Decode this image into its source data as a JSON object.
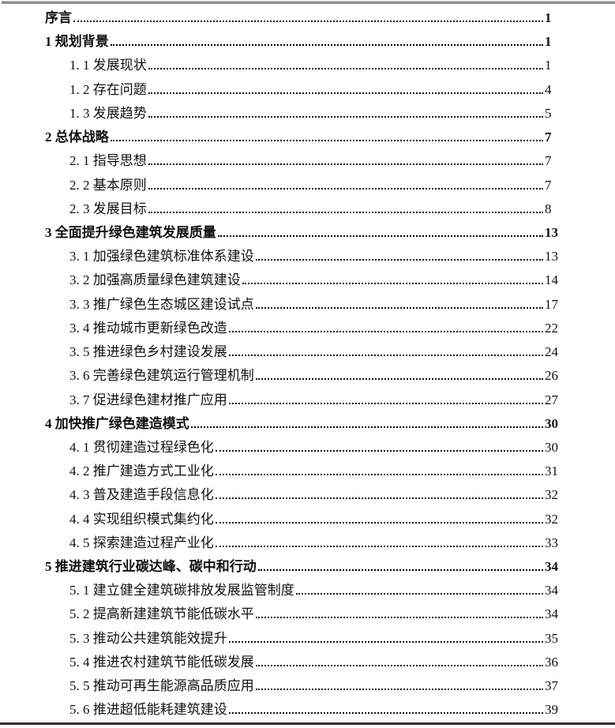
{
  "page": {
    "background_color": "#ffffff",
    "top_edge_color": "#767676",
    "bottom_edge_color": "#3c2c2a",
    "text_color": "#111111"
  },
  "toc": {
    "entries": [
      {
        "level": 1,
        "label": "序言",
        "page": "1"
      },
      {
        "level": 1,
        "label": "1 规划背景",
        "page": "1"
      },
      {
        "level": 2,
        "label": "1. 1 发展现状",
        "page": "1"
      },
      {
        "level": 2,
        "label": "1. 2 存在问题",
        "page": "4"
      },
      {
        "level": 2,
        "label": "1. 3 发展趋势",
        "page": "5"
      },
      {
        "level": 1,
        "label": "2 总体战略",
        "page": "7"
      },
      {
        "level": 2,
        "label": "2. 1 指导思想",
        "page": "7"
      },
      {
        "level": 2,
        "label": "2. 2 基本原则",
        "page": "7"
      },
      {
        "level": 2,
        "label": "2. 3 发展目标",
        "page": "8"
      },
      {
        "level": 1,
        "label": "3 全面提升绿色建筑发展质量",
        "page": "13"
      },
      {
        "level": 2,
        "label": "3. 1 加强绿色建筑标准体系建设",
        "page": "13"
      },
      {
        "level": 2,
        "label": "3. 2 加强高质量绿色建筑建设",
        "page": "14"
      },
      {
        "level": 2,
        "label": "3. 3 推广绿色生态城区建设试点",
        "page": "17"
      },
      {
        "level": 2,
        "label": "3. 4 推动城市更新绿色改造",
        "page": "22"
      },
      {
        "level": 2,
        "label": "3. 5 推进绿色乡村建设发展",
        "page": "24"
      },
      {
        "level": 2,
        "label": "3. 6 完善绿色建筑运行管理机制",
        "page": "26"
      },
      {
        "level": 2,
        "label": "3. 7 促进绿色建材推广应用",
        "page": "27"
      },
      {
        "level": 1,
        "label": "4 加快推广绿色建造模式",
        "page": "30"
      },
      {
        "level": 2,
        "label": "4. 1 贯彻建造过程绿色化",
        "page": "30"
      },
      {
        "level": 2,
        "label": "4. 2 推广建造方式工业化",
        "page": "31"
      },
      {
        "level": 2,
        "label": "4. 3 普及建造手段信息化",
        "page": "32"
      },
      {
        "level": 2,
        "label": "4. 4 实现组织模式集约化",
        "page": "32"
      },
      {
        "level": 2,
        "label": "4. 5 探索建造过程产业化",
        "page": "33"
      },
      {
        "level": 1,
        "label": "5 推进建筑行业碳达峰、碳中和行动",
        "page": "34"
      },
      {
        "level": 2,
        "label": "5. 1 建立健全建筑碳排放发展监管制度",
        "page": "34"
      },
      {
        "level": 2,
        "label": "5. 2 提高新建建筑节能低碳水平",
        "page": "34"
      },
      {
        "level": 2,
        "label": "5. 3 推动公共建筑能效提升",
        "page": "35"
      },
      {
        "level": 2,
        "label": "5. 4 推进农村建筑节能低碳发展",
        "page": "36"
      },
      {
        "level": 2,
        "label": "5. 5 推动可再生能源高品质应用",
        "page": "37"
      },
      {
        "level": 2,
        "label": "5. 6 推进超低能耗建筑建设",
        "page": "39"
      }
    ]
  }
}
